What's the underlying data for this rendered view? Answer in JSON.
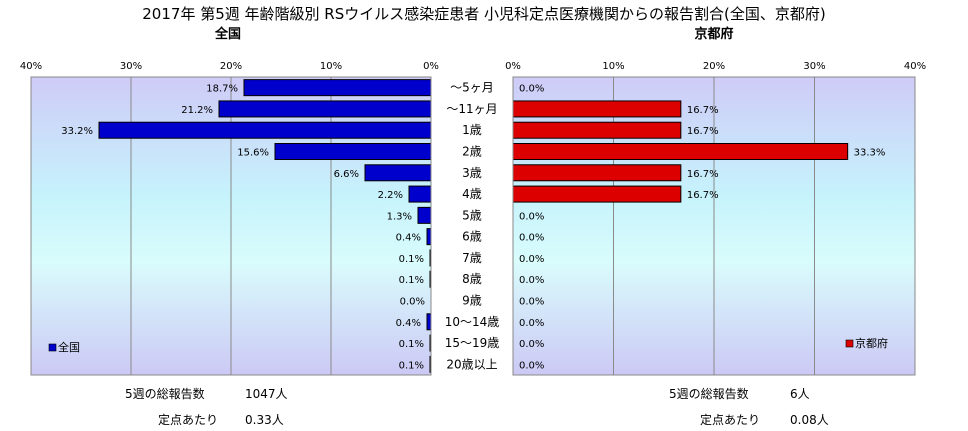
{
  "title": "2017年 第5週 年齢階級別 RSウイルス感染症患者 小児科定点医療機関からの報告割合(全国、京都府)",
  "chart_data": {
    "type": "bar",
    "orientation": "horizontal",
    "categories": [
      "～5ヶ月",
      "～11ヶ月",
      "1歳",
      "2歳",
      "3歳",
      "4歳",
      "5歳",
      "6歳",
      "7歳",
      "8歳",
      "9歳",
      "10～14歳",
      "15～19歳",
      "20歳以上"
    ],
    "value_format": "percent",
    "xlim": [
      0,
      40
    ],
    "xticks": [
      0,
      10,
      20,
      30,
      40
    ],
    "grid": true,
    "panels": [
      {
        "title": "全国",
        "legend": "全国",
        "legend_position": "bottom-left",
        "direction": "right-to-left",
        "color": "#0000cc",
        "values": [
          18.7,
          21.2,
          33.2,
          15.6,
          6.6,
          2.2,
          1.3,
          0.4,
          0.1,
          0.1,
          0.0,
          0.4,
          0.1,
          0.1
        ],
        "labels": [
          "18.7%",
          "21.2%",
          "33.2%",
          "15.6%",
          "6.6%",
          "2.2%",
          "1.3%",
          "0.4%",
          "0.1%",
          "0.1%",
          "0.0%",
          "0.4%",
          "0.1%",
          "0.1%"
        ]
      },
      {
        "title": "京都府",
        "legend": "京都府",
        "legend_position": "bottom-right",
        "direction": "left-to-right",
        "color": "#dd0000",
        "values": [
          0.0,
          16.7,
          16.7,
          33.3,
          16.7,
          16.7,
          0.0,
          0.0,
          0.0,
          0.0,
          0.0,
          0.0,
          0.0,
          0.0
        ],
        "labels": [
          "0.0%",
          "16.7%",
          "16.7%",
          "33.3%",
          "16.7%",
          "16.7%",
          "0.0%",
          "0.0%",
          "0.0%",
          "0.0%",
          "0.0%",
          "0.0%",
          "0.0%",
          "0.0%"
        ]
      }
    ]
  },
  "tick_labels": [
    "0%",
    "10%",
    "20%",
    "30%",
    "40%"
  ],
  "summary": {
    "national": {
      "reports_label": "5週の総報告数",
      "reports_value": "1047人",
      "per_label": "定点あたり",
      "per_value": "0.33人"
    },
    "kyoto": {
      "reports_label": "5週の総報告数",
      "reports_value": "6人",
      "per_label": "定点あたり",
      "per_value": "0.08人"
    }
  }
}
